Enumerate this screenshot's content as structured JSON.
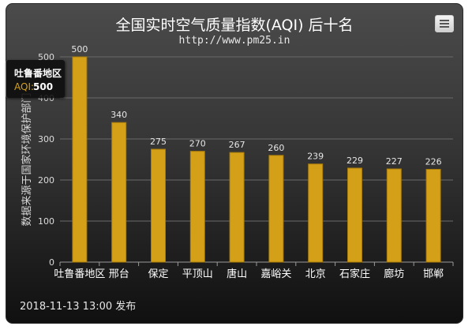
{
  "title": "全国实时空气质量指数(AQI) 后十名",
  "subtitle": "http://www.pm25.in",
  "footer": "2018-11-13 13:00 发布",
  "menu_icon": "hamburger-menu-icon",
  "colors": {
    "bar": "#d4a017",
    "bar_dark": "#a87c0c",
    "grid": "#6a6a6a",
    "text": "#e0e0e0"
  },
  "tooltip": {
    "name": "吐鲁番地区",
    "label": "AQI:",
    "value": "500"
  },
  "chart_data": {
    "type": "bar",
    "title": "全国实时空气质量指数(AQI) 后十名",
    "subtitle": "http://www.pm25.in",
    "ylabel": "数据来源于国家环境保护部门",
    "categories": [
      "吐鲁番地区",
      "邢台",
      "保定",
      "平顶山",
      "唐山",
      "嘉峪关",
      "北京",
      "石家庄",
      "廊坊",
      "邯郸"
    ],
    "values": [
      500,
      340,
      275,
      270,
      267,
      260,
      239,
      229,
      227,
      226
    ],
    "data_labels": [
      "500",
      "340",
      "275",
      "270",
      "267",
      "260",
      "239",
      "229",
      "227",
      "226"
    ],
    "yticks": [
      "0",
      "100",
      "200",
      "300",
      "400",
      "500"
    ],
    "ylim": [
      0,
      500
    ],
    "grid": true,
    "legend": "none"
  }
}
